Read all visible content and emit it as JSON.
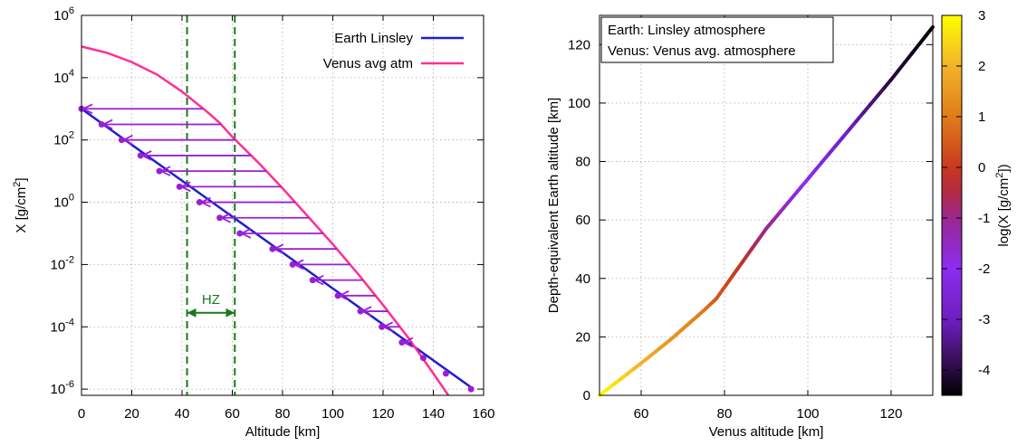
{
  "chart_data": [
    {
      "type": "line",
      "xlabel": "Altitude [km]",
      "ylabel_base": "X [g/cm",
      "ylabel_sup": "2",
      "ylabel_end": "]",
      "xlim": [
        0,
        160
      ],
      "ylog10lim": [
        -6.2,
        6
      ],
      "xticks": [
        0,
        20,
        40,
        60,
        80,
        100,
        120,
        140,
        160
      ],
      "ytick_exponents": [
        -6,
        -4,
        -2,
        0,
        2,
        4,
        6
      ],
      "ytick_base": "10",
      "grid": true,
      "legend_position": "top-right",
      "series": [
        {
          "name": "Earth Linsley",
          "color": "#1f1fcc",
          "x": [
            0,
            156
          ],
          "log10y": [
            3,
            -6
          ]
        },
        {
          "name": "Venus avg atm",
          "color": "#ff2f94",
          "x": [
            0,
            10,
            20,
            30,
            40,
            50,
            55,
            60,
            70,
            80,
            90,
            100,
            110,
            120,
            130,
            140,
            146
          ],
          "log10y": [
            5,
            4.8,
            4.5,
            4.1,
            3.55,
            2.9,
            2.55,
            2.1,
            1.3,
            0.45,
            -0.45,
            -1.35,
            -2.3,
            -3.3,
            -4.35,
            -5.5,
            -6.2
          ]
        }
      ],
      "arrows": {
        "color": "#9a1fd6",
        "earth_x": [
          0,
          8,
          16,
          23.5,
          31,
          39,
          47,
          55,
          63,
          76,
          84,
          92,
          102,
          111,
          119.5,
          127.5,
          136,
          145,
          155
        ],
        "log10y": [
          3,
          2.5,
          2,
          1.5,
          1,
          0.5,
          0,
          -0.5,
          -1,
          -1.5,
          -2,
          -2.5,
          -3,
          -3.5,
          -4,
          -4.5,
          -5,
          -5.5,
          -6
        ]
      },
      "habitable_zone": {
        "label": "HZ",
        "x_range": [
          42,
          61
        ],
        "label_log10y": -3.55,
        "color": "#1a7a1a"
      }
    },
    {
      "type": "line",
      "xlabel": "Venus altitude [km]",
      "ylabel": "Depth-equivalent Earth altitude [km]",
      "xlim": [
        50,
        130
      ],
      "ylim": [
        0,
        130
      ],
      "xticks": [
        60,
        80,
        100,
        120
      ],
      "yticks": [
        0,
        20,
        40,
        60,
        80,
        100,
        120
      ],
      "grid": true,
      "legend_position": "top-left",
      "legend_lines": [
        "Earth: Linsley atmosphere",
        "Venus: Venus avg. atmosphere"
      ],
      "series": [
        {
          "x": [
            50,
            60,
            67,
            75,
            78,
            83,
            90,
            100,
            110,
            120,
            130
          ],
          "y": [
            0,
            11,
            19,
            29,
            33,
            43,
            57,
            74,
            91,
            108,
            126
          ],
          "log10_depth": [
            3,
            2,
            1.5,
            1,
            0.5,
            0,
            -1,
            -2,
            -3,
            -4,
            -4.5
          ]
        }
      ],
      "colorbar": {
        "label_base": "log(X [g/cm",
        "label_sup": "2",
        "label_end": "])",
        "range": [
          -4.5,
          3
        ],
        "ticks": [
          "3",
          "2",
          "1",
          "0",
          "-1",
          "-2",
          "-3",
          "-4"
        ],
        "stops": [
          {
            "v": -4.5,
            "color": "#000000"
          },
          {
            "v": -3.8,
            "color": "#3a0f5a"
          },
          {
            "v": -3.0,
            "color": "#6d1fc0"
          },
          {
            "v": -2.0,
            "color": "#8c2cf0"
          },
          {
            "v": -1.0,
            "color": "#9a2890"
          },
          {
            "v": -0.5,
            "color": "#b22a45"
          },
          {
            "v": 0.0,
            "color": "#c8391e"
          },
          {
            "v": 1.0,
            "color": "#e07c1a"
          },
          {
            "v": 2.0,
            "color": "#f2b32a"
          },
          {
            "v": 3.0,
            "color": "#ffff00"
          }
        ]
      }
    }
  ]
}
